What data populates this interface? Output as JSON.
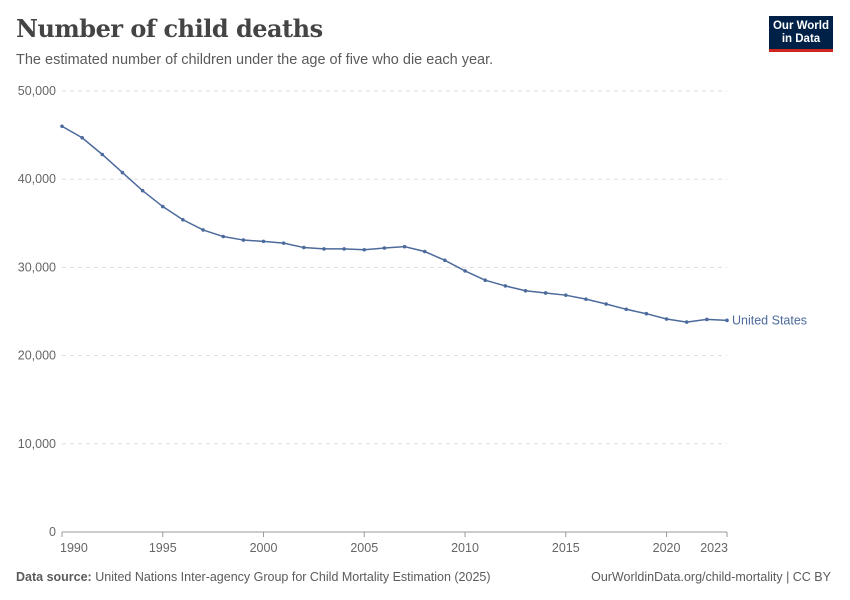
{
  "header": {
    "title": "Number of child deaths",
    "subtitle": "The estimated number of children under the age of five who die each year.",
    "logo": "Our World in Data"
  },
  "footer": {
    "source_label": "Data source:",
    "source": "United Nations Inter-agency Group for Child Mortality Estimation (2025)",
    "link": "OurWorldinData.org/child-mortality | CC BY"
  },
  "chart_data": {
    "type": "line",
    "title": "Number of child deaths",
    "xlim": [
      1990,
      2023
    ],
    "ylim": [
      0,
      50000
    ],
    "x_ticks": [
      "1990",
      "1995",
      "2000",
      "2005",
      "2010",
      "2015",
      "2020",
      "2023"
    ],
    "y_ticks": [
      "0",
      "10,000",
      "20,000",
      "30,000",
      "40,000",
      "50,000"
    ],
    "grid": "horizontal dashed",
    "legend": "right, inline label at line end",
    "series": [
      {
        "name": "United States",
        "color": "#4c6a9c",
        "x": [
          1990,
          1991,
          1992,
          1993,
          1994,
          1995,
          1996,
          1997,
          1998,
          1999,
          2000,
          2001,
          2002,
          2003,
          2004,
          2005,
          2006,
          2007,
          2008,
          2009,
          2010,
          2011,
          2012,
          2013,
          2014,
          2015,
          2016,
          2017,
          2018,
          2019,
          2020,
          2021,
          2022,
          2023
        ],
        "values": [
          46000,
          44700,
          42800,
          40750,
          38700,
          36900,
          35400,
          34250,
          33500,
          33100,
          32950,
          32750,
          32250,
          32100,
          32100,
          32000,
          32200,
          32350,
          31800,
          30800,
          29600,
          28550,
          27900,
          27350,
          27100,
          26850,
          26400,
          25850,
          25250,
          24750,
          24150,
          23800,
          24100,
          24000
        ]
      }
    ]
  }
}
